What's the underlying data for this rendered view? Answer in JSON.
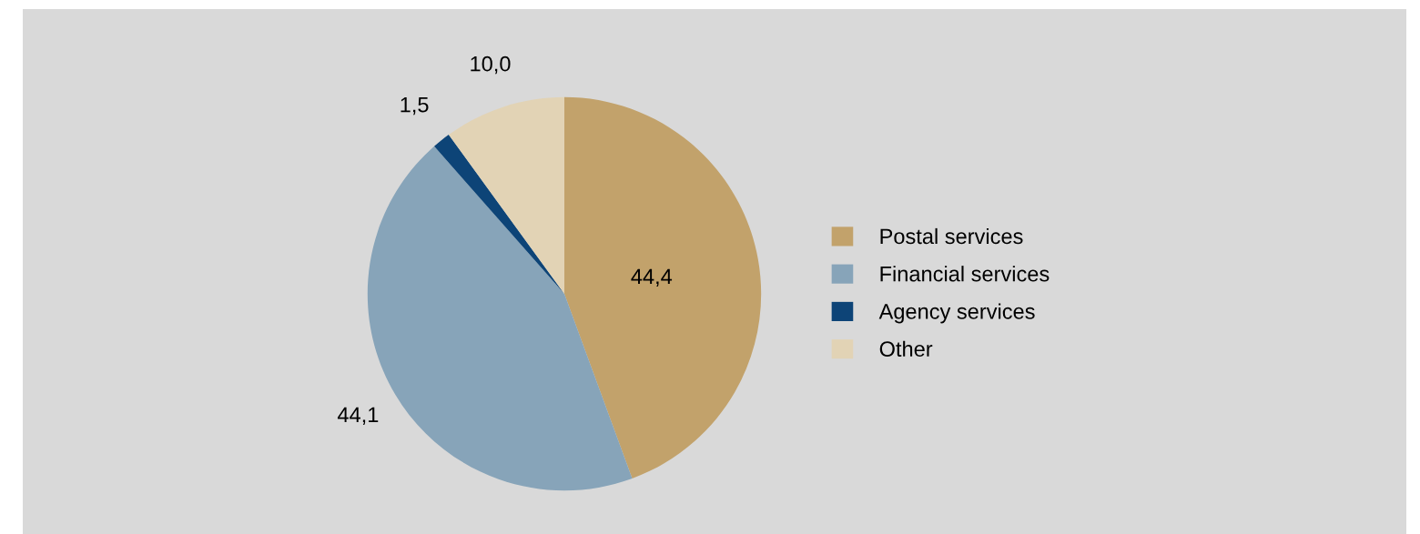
{
  "chart_data": {
    "type": "pie",
    "categories": [
      "Postal services",
      "Financial services",
      "Agency services",
      "Other"
    ],
    "values": [
      44.4,
      44.1,
      1.5,
      10.0
    ],
    "colors": [
      "#c2a26b",
      "#87a4b9",
      "#0d4477",
      "#e2d3b5"
    ],
    "value_labels": [
      "44,4",
      "44,1",
      "1,5",
      "10,0"
    ],
    "legend": "right"
  }
}
